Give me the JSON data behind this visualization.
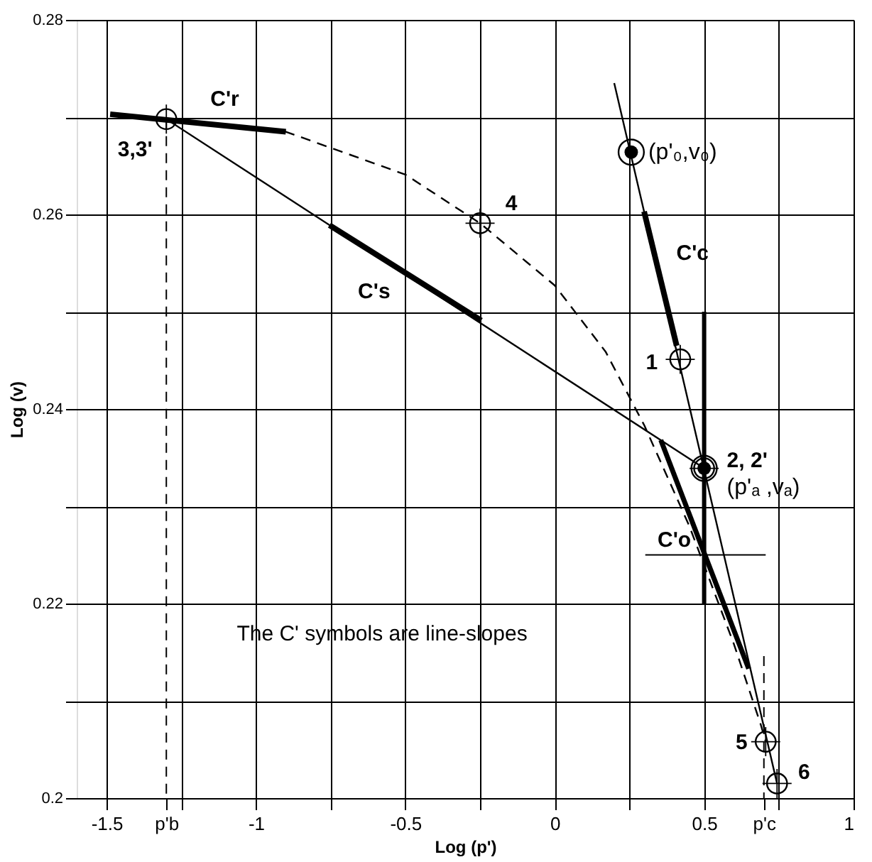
{
  "chart_data": {
    "type": "line",
    "xlabel": "Log (p')",
    "ylabel": "Log (v)",
    "xlim": [
      -1.6,
      1.0
    ],
    "ylim": [
      0.2,
      0.28
    ],
    "xticks": [
      -1.5,
      {
        "value": -1.3,
        "label": "p'b"
      },
      {
        "value": -1.25,
        "label": null
      },
      -1,
      {
        "value": -0.75,
        "label": null
      },
      -0.5,
      {
        "value": -0.25,
        "label": null
      },
      0,
      {
        "value": 0.25,
        "label": null
      },
      0.5,
      {
        "value": 0.7,
        "label": "p'c"
      },
      {
        "value": 0.75,
        "label": null
      },
      1
    ],
    "yticks": [
      0.2,
      {
        "value": 0.21,
        "label": null
      },
      0.22,
      {
        "value": 0.23,
        "label": null
      },
      0.24,
      {
        "value": 0.25,
        "label": null
      },
      0.26,
      {
        "value": 0.27,
        "label": null
      },
      0.28
    ],
    "grid": true,
    "series": [
      {
        "type": "line",
        "color": "#000000",
        "x": [
          -1.3,
          0.5
        ],
        "values": [
          0.2698,
          0.2339
        ]
      },
      {
        "type": "line",
        "color": "#000000",
        "x": [
          -1.488,
          -0.9
        ],
        "values": [
          0.2703,
          0.2685
        ]
      },
      {
        "type": "line",
        "color": "#000000",
        "line_style": "dashed",
        "x": [
          -1.3,
          -0.9,
          -0.5,
          -0.25,
          0,
          0.17,
          0.3,
          0.45,
          0.6,
          0.69,
          0.706
        ],
        "values": [
          0.2698,
          0.2685,
          0.2641,
          0.2591,
          0.2527,
          0.2459,
          0.2383,
          0.228,
          0.2158,
          0.2075,
          0.2058
        ]
      },
      {
        "type": "line",
        "color": "#000000",
        "x": [
          -0.754,
          -0.246
        ],
        "values": [
          0.2589,
          0.2491
        ]
      },
      {
        "type": "line",
        "color": "#000000",
        "x": [
          0.199,
          0.744
        ],
        "values": [
          0.2735,
          0.2015
        ]
      },
      {
        "type": "line",
        "color": "#000000",
        "x": [
          0.299,
          0.408
        ],
        "values": [
          0.2603,
          0.2465
        ]
      },
      {
        "type": "line",
        "color": "#000000",
        "x": [
          0.5,
          0.5
        ],
        "values": [
          0.25,
          0.22
        ]
      },
      {
        "type": "line",
        "color": "#000000",
        "x": [
          0.355,
          0.649
        ],
        "values": [
          0.2368,
          0.2133
        ]
      },
      {
        "type": "line",
        "color": "#000000",
        "x": [
          0.303,
          0.706
        ],
        "values": [
          0.225,
          0.225
        ]
      },
      {
        "type": "line",
        "color": "#000000",
        "line_style": "dashed",
        "x": [
          -1.3,
          -1.3
        ],
        "values": [
          0.2698,
          0.2
        ]
      },
      {
        "type": "line",
        "color": "#000000",
        "line_style": "dashed",
        "x": [
          0.7,
          0.7
        ],
        "values": [
          0.2146,
          0.2
        ]
      },
      {
        "type": "scatter",
        "color": "#000000",
        "marker": "circle",
        "x": [
          -1.3,
          -0.25,
          0.42,
          0.5,
          0.706,
          0.744
        ],
        "values": [
          0.2698,
          0.2591,
          0.2451,
          0.2339,
          0.2058,
          0.2015
        ]
      },
      {
        "type": "scatter",
        "color": "#000000",
        "marker": "circle",
        "x": [
          0.256,
          0.5
        ],
        "values": [
          0.2664,
          0.2339
        ]
      }
    ],
    "annotations": [
      {
        "text": "C'r",
        "x": -1.19,
        "y": 0.2694
      },
      {
        "text": "3,3'",
        "x": -1.3,
        "y": 0.2698
      },
      {
        "text": "C's",
        "x": -0.5,
        "y": 0.254
      },
      {
        "text": "4",
        "x": -0.25,
        "y": 0.2591
      },
      {
        "text": "(p'₀,v₀)",
        "x": 0.256,
        "y": 0.2664
      },
      {
        "text": "C'c",
        "x": 0.35,
        "y": 0.2534
      },
      {
        "text": "1",
        "x": 0.42,
        "y": 0.2451
      },
      {
        "text": "2, 2'",
        "x": 0.5,
        "y": 0.2339
      },
      {
        "text": "(p'ₐ ,vₐ)",
        "x": 0.5,
        "y": 0.2339
      },
      {
        "text": "C'o",
        "x": 0.5,
        "y": 0.225
      },
      {
        "text": "5",
        "x": 0.706,
        "y": 0.2058
      },
      {
        "text": "6",
        "x": 0.744,
        "y": 0.2015
      },
      "The C' symbols are line-slopes"
    ]
  }
}
